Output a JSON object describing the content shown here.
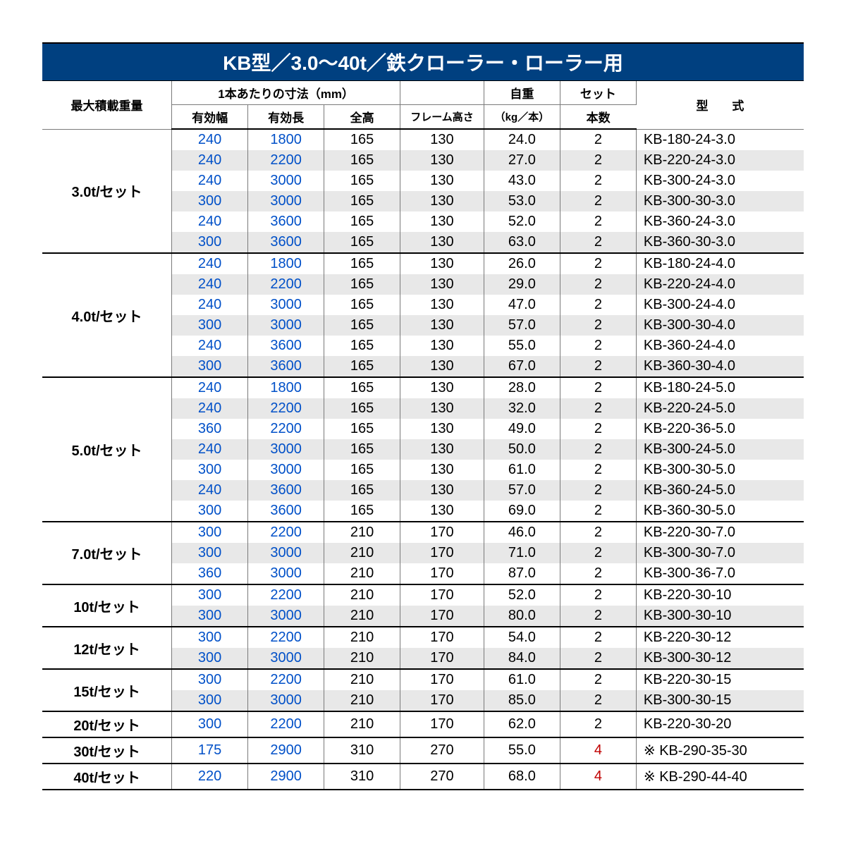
{
  "title": "KB型／3.0～40t／鉄クローラー・ローラー用",
  "colors": {
    "header_bg": "#004080",
    "header_fg": "#ffffff",
    "row_stripe": "#e8e8e8",
    "grid": "#7a7a7a",
    "group_border": "#000000",
    "blue": "#0050c8",
    "red": "#c00000"
  },
  "col_widths_pct": [
    17,
    10,
    10,
    10,
    11,
    10,
    10,
    22
  ],
  "headers": {
    "max_load": "最大積載重量",
    "dims_group": "1本あたりの寸法（mm）",
    "width": "有効幅",
    "length": "有効長",
    "height": "全高",
    "frame_h": "フレーム高さ",
    "weight_top": "自重",
    "weight_unit": "（kg／本）",
    "set_top": "セット",
    "set_bot": "本数",
    "model": "型　　式"
  },
  "groups": [
    {
      "label": "3.0t/セット",
      "rows": [
        {
          "w": "240",
          "l": "1800",
          "h": "165",
          "fh": "130",
          "wt": "24.0",
          "sc": "2",
          "m": "KB-180-24-3.0"
        },
        {
          "w": "240",
          "l": "2200",
          "h": "165",
          "fh": "130",
          "wt": "27.0",
          "sc": "2",
          "m": "KB-220-24-3.0"
        },
        {
          "w": "240",
          "l": "3000",
          "h": "165",
          "fh": "130",
          "wt": "43.0",
          "sc": "2",
          "m": "KB-300-24-3.0"
        },
        {
          "w": "300",
          "l": "3000",
          "h": "165",
          "fh": "130",
          "wt": "53.0",
          "sc": "2",
          "m": "KB-300-30-3.0"
        },
        {
          "w": "240",
          "l": "3600",
          "h": "165",
          "fh": "130",
          "wt": "52.0",
          "sc": "2",
          "m": "KB-360-24-3.0"
        },
        {
          "w": "300",
          "l": "3600",
          "h": "165",
          "fh": "130",
          "wt": "63.0",
          "sc": "2",
          "m": "KB-360-30-3.0"
        }
      ]
    },
    {
      "label": "4.0t/セット",
      "rows": [
        {
          "w": "240",
          "l": "1800",
          "h": "165",
          "fh": "130",
          "wt": "26.0",
          "sc": "2",
          "m": "KB-180-24-4.0"
        },
        {
          "w": "240",
          "l": "2200",
          "h": "165",
          "fh": "130",
          "wt": "29.0",
          "sc": "2",
          "m": "KB-220-24-4.0"
        },
        {
          "w": "240",
          "l": "3000",
          "h": "165",
          "fh": "130",
          "wt": "47.0",
          "sc": "2",
          "m": "KB-300-24-4.0"
        },
        {
          "w": "300",
          "l": "3000",
          "h": "165",
          "fh": "130",
          "wt": "57.0",
          "sc": "2",
          "m": "KB-300-30-4.0"
        },
        {
          "w": "240",
          "l": "3600",
          "h": "165",
          "fh": "130",
          "wt": "55.0",
          "sc": "2",
          "m": "KB-360-24-4.0"
        },
        {
          "w": "300",
          "l": "3600",
          "h": "165",
          "fh": "130",
          "wt": "67.0",
          "sc": "2",
          "m": "KB-360-30-4.0"
        }
      ]
    },
    {
      "label": "5.0t/セット",
      "rows": [
        {
          "w": "240",
          "l": "1800",
          "h": "165",
          "fh": "130",
          "wt": "28.0",
          "sc": "2",
          "m": "KB-180-24-5.0"
        },
        {
          "w": "240",
          "l": "2200",
          "h": "165",
          "fh": "130",
          "wt": "32.0",
          "sc": "2",
          "m": "KB-220-24-5.0"
        },
        {
          "w": "360",
          "l": "2200",
          "h": "165",
          "fh": "130",
          "wt": "49.0",
          "sc": "2",
          "m": "KB-220-36-5.0"
        },
        {
          "w": "240",
          "l": "3000",
          "h": "165",
          "fh": "130",
          "wt": "50.0",
          "sc": "2",
          "m": "KB-300-24-5.0"
        },
        {
          "w": "300",
          "l": "3000",
          "h": "165",
          "fh": "130",
          "wt": "61.0",
          "sc": "2",
          "m": "KB-300-30-5.0"
        },
        {
          "w": "240",
          "l": "3600",
          "h": "165",
          "fh": "130",
          "wt": "57.0",
          "sc": "2",
          "m": "KB-360-24-5.0"
        },
        {
          "w": "300",
          "l": "3600",
          "h": "165",
          "fh": "130",
          "wt": "69.0",
          "sc": "2",
          "m": "KB-360-30-5.0"
        }
      ]
    },
    {
      "label": "7.0t/セット",
      "rows": [
        {
          "w": "300",
          "l": "2200",
          "h": "210",
          "fh": "170",
          "wt": "46.0",
          "sc": "2",
          "m": "KB-220-30-7.0"
        },
        {
          "w": "300",
          "l": "3000",
          "h": "210",
          "fh": "170",
          "wt": "71.0",
          "sc": "2",
          "m": "KB-300-30-7.0"
        },
        {
          "w": "360",
          "l": "3000",
          "h": "210",
          "fh": "170",
          "wt": "87.0",
          "sc": "2",
          "m": "KB-300-36-7.0"
        }
      ]
    },
    {
      "label": "10t/セット",
      "rows": [
        {
          "w": "300",
          "l": "2200",
          "h": "210",
          "fh": "170",
          "wt": "52.0",
          "sc": "2",
          "m": "KB-220-30-10"
        },
        {
          "w": "300",
          "l": "3000",
          "h": "210",
          "fh": "170",
          "wt": "80.0",
          "sc": "2",
          "m": "KB-300-30-10"
        }
      ]
    },
    {
      "label": "12t/セット",
      "rows": [
        {
          "w": "300",
          "l": "2200",
          "h": "210",
          "fh": "170",
          "wt": "54.0",
          "sc": "2",
          "m": "KB-220-30-12"
        },
        {
          "w": "300",
          "l": "3000",
          "h": "210",
          "fh": "170",
          "wt": "84.0",
          "sc": "2",
          "m": "KB-300-30-12"
        }
      ]
    },
    {
      "label": "15t/セット",
      "rows": [
        {
          "w": "300",
          "l": "2200",
          "h": "210",
          "fh": "170",
          "wt": "61.0",
          "sc": "2",
          "m": "KB-220-30-15"
        },
        {
          "w": "300",
          "l": "3000",
          "h": "210",
          "fh": "170",
          "wt": "85.0",
          "sc": "2",
          "m": "KB-300-30-15"
        }
      ]
    },
    {
      "label": "20t/セット",
      "rows": [
        {
          "w": "300",
          "l": "2200",
          "h": "210",
          "fh": "170",
          "wt": "62.0",
          "sc": "2",
          "m": "KB-220-30-20"
        }
      ]
    },
    {
      "label": "30t/セット",
      "rows": [
        {
          "w": "175",
          "l": "2900",
          "h": "310",
          "fh": "270",
          "wt": "55.0",
          "sc": "4",
          "sc_red": true,
          "m": "※ KB-290-35-30"
        }
      ]
    },
    {
      "label": "40t/セット",
      "rows": [
        {
          "w": "220",
          "l": "2900",
          "h": "310",
          "fh": "270",
          "wt": "68.0",
          "sc": "4",
          "sc_red": true,
          "m": "※ KB-290-44-40"
        }
      ]
    }
  ]
}
